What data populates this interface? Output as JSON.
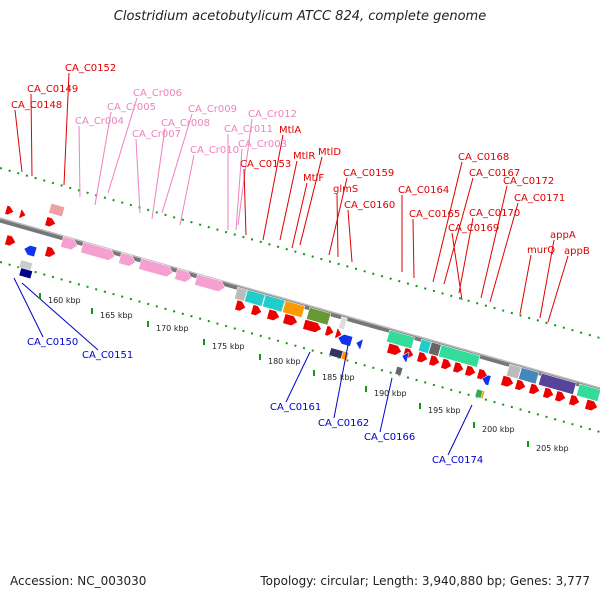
{
  "title": "Clostridium acetobutylicum ATCC 824, complete genome",
  "footer": {
    "accession": "Accession: NC_003030",
    "summary": "Topology: circular; Length: 3,940,880 bp; Genes: 3,777"
  },
  "colors": {
    "cds_label": "#e00000",
    "rna_label": "#f080c0",
    "minus_label": "#0000cc",
    "backbone": "#888888",
    "dots": "#119911"
  },
  "axis_ticks": [
    "160 kbp",
    "165 kbp",
    "170 kbp",
    "175 kbp",
    "180 kbp",
    "185 kbp",
    "190 kbp",
    "195 kbp",
    "200 kbp",
    "205 kbp"
  ],
  "top_labels": [
    {
      "text": "CA_C0152",
      "kind": "cds"
    },
    {
      "text": "CA_C0149",
      "kind": "cds"
    },
    {
      "text": "CA_C0148",
      "kind": "cds"
    },
    {
      "text": "CA_Cr006",
      "kind": "rna"
    },
    {
      "text": "CA_Cr005",
      "kind": "rna"
    },
    {
      "text": "CA_Cr004",
      "kind": "rna"
    },
    {
      "text": "CA_Cr009",
      "kind": "rna"
    },
    {
      "text": "CA_Cr007",
      "kind": "rna"
    },
    {
      "text": "CA_Cr008",
      "kind": "rna"
    },
    {
      "text": "CA_Cr012",
      "kind": "rna"
    },
    {
      "text": "CA_Cr011",
      "kind": "rna"
    },
    {
      "text": "CA_Cr003",
      "kind": "rna"
    },
    {
      "text": "CA_Cr010",
      "kind": "rna"
    },
    {
      "text": "MtlA",
      "kind": "cds"
    },
    {
      "text": "MtlR",
      "kind": "cds"
    },
    {
      "text": "MtlD",
      "kind": "cds"
    },
    {
      "text": "CA_C0153",
      "kind": "cds"
    },
    {
      "text": "MtlF",
      "kind": "cds"
    },
    {
      "text": "CA_C0159",
      "kind": "cds"
    },
    {
      "text": "glmS",
      "kind": "cds"
    },
    {
      "text": "CA_C0160",
      "kind": "cds"
    },
    {
      "text": "CA_C0168",
      "kind": "cds"
    },
    {
      "text": "CA_C0164",
      "kind": "cds"
    },
    {
      "text": "CA_C0167",
      "kind": "cds"
    },
    {
      "text": "CA_C0172",
      "kind": "cds"
    },
    {
      "text": "CA_C0165",
      "kind": "cds"
    },
    {
      "text": "CA_C0171",
      "kind": "cds"
    },
    {
      "text": "CA_C0170",
      "kind": "cds"
    },
    {
      "text": "CA_C0169",
      "kind": "cds"
    },
    {
      "text": "appA",
      "kind": "cds"
    },
    {
      "text": "murQ",
      "kind": "cds"
    },
    {
      "text": "appB",
      "kind": "cds"
    }
  ],
  "bottom_labels": [
    {
      "text": "CA_C0150",
      "kind": "minus"
    },
    {
      "text": "CA_C0151",
      "kind": "minus"
    },
    {
      "text": "CA_C0161",
      "kind": "minus"
    },
    {
      "text": "CA_C0162",
      "kind": "minus"
    },
    {
      "text": "CA_C0166",
      "kind": "minus"
    },
    {
      "text": "CA_C0174",
      "kind": "minus"
    }
  ]
}
